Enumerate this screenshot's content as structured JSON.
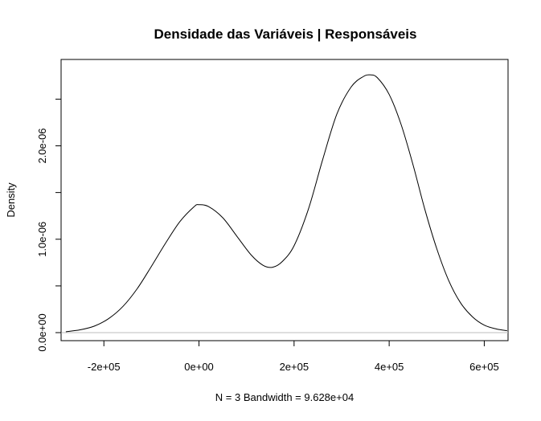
{
  "chart_data": {
    "type": "line",
    "title": "Densidade das Variáveis | Responsáveis",
    "xlabel": "N = 3   Bandwidth = 9.628e+04",
    "ylabel": "Density",
    "xlim": [
      -290000,
      650000
    ],
    "ylim": [
      0,
      2.77e-06
    ],
    "x_ticks": [
      {
        "value": -200000,
        "label": "-2e+05"
      },
      {
        "value": 0,
        "label": "0e+00"
      },
      {
        "value": 200000,
        "label": "2e+05"
      },
      {
        "value": 400000,
        "label": "4e+05"
      },
      {
        "value": 600000,
        "label": "6e+05"
      }
    ],
    "y_ticks": [
      {
        "value": 0,
        "label": "0.0e+00"
      },
      {
        "value": 5e-07,
        "label": ""
      },
      {
        "value": 1e-06,
        "label": "1.0e-06"
      },
      {
        "value": 1.5e-06,
        "label": ""
      },
      {
        "value": 2e-06,
        "label": "2.0e-06"
      },
      {
        "value": 2.5e-06,
        "label": ""
      }
    ],
    "grid": false,
    "baseline": 0,
    "series": [
      {
        "color": "#000000",
        "points": [
          [
            -280000,
            1e-08
          ],
          [
            -250000,
            3e-08
          ],
          [
            -220000,
            7e-08
          ],
          [
            -190000,
            1.5e-07
          ],
          [
            -160000,
            2.8e-07
          ],
          [
            -130000,
            4.7e-07
          ],
          [
            -100000,
            7.1e-07
          ],
          [
            -70000,
            9.6e-07
          ],
          [
            -40000,
            1.19e-06
          ],
          [
            -10000,
            1.35e-06
          ],
          [
            0,
            1.37e-06
          ],
          [
            20000,
            1.35e-06
          ],
          [
            50000,
            1.23e-06
          ],
          [
            80000,
            1.03e-06
          ],
          [
            110000,
            8.3e-07
          ],
          [
            135000,
            7.2e-07
          ],
          [
            155000,
            7e-07
          ],
          [
            175000,
            7.6e-07
          ],
          [
            200000,
            9.3e-07
          ],
          [
            230000,
            1.32e-06
          ],
          [
            260000,
            1.85e-06
          ],
          [
            290000,
            2.34e-06
          ],
          [
            320000,
            2.63e-06
          ],
          [
            345000,
            2.74e-06
          ],
          [
            360000,
            2.76e-06
          ],
          [
            375000,
            2.73e-06
          ],
          [
            400000,
            2.55e-06
          ],
          [
            425000,
            2.23e-06
          ],
          [
            450000,
            1.8e-06
          ],
          [
            475000,
            1.32e-06
          ],
          [
            500000,
            9e-07
          ],
          [
            525000,
            5.6e-07
          ],
          [
            550000,
            3.2e-07
          ],
          [
            575000,
            1.7e-07
          ],
          [
            600000,
            8e-08
          ],
          [
            625000,
            4e-08
          ],
          [
            648000,
            2e-08
          ]
        ]
      }
    ],
    "colors": {
      "curve": "#000000",
      "baseline": "#bebebe",
      "box": "#000000"
    }
  }
}
